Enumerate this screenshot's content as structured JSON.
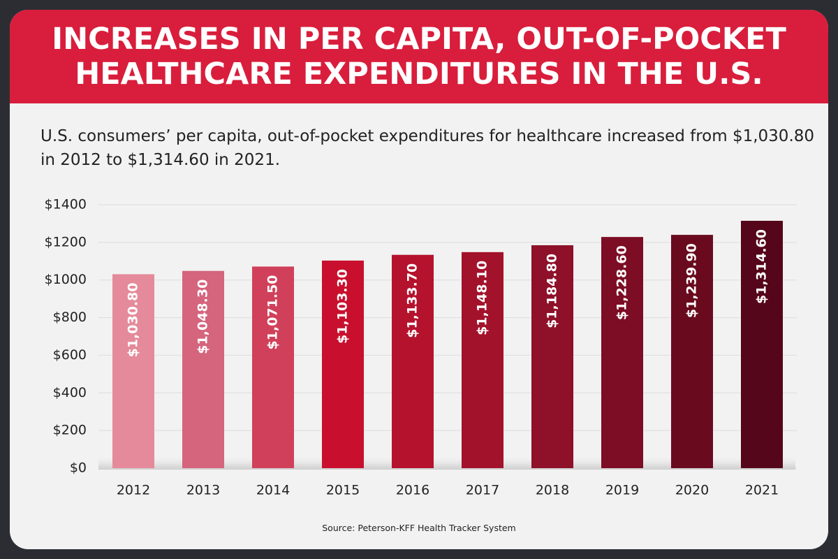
{
  "chart_data": {
    "type": "bar",
    "title": "INCREASES IN PER CAPITA, OUT-OF-POCKET HEALTHCARE EXPENDITURES IN THE U.S.",
    "subtitle": "U.S. consumers’ per capita, out-of-pocket expenditures for healthcare increased from $1,030.80 in 2012 to $1,314.60 in 2021.",
    "source": "Source: Peterson-KFF Health Tracker System",
    "categories": [
      "2012",
      "2013",
      "2014",
      "2015",
      "2016",
      "2017",
      "2018",
      "2019",
      "2020",
      "2021"
    ],
    "values": [
      1030.8,
      1048.3,
      1071.5,
      1103.3,
      1133.7,
      1148.1,
      1184.8,
      1228.6,
      1239.9,
      1314.6
    ],
    "value_labels": [
      "$1,030.80",
      "$1,048.30",
      "$1,071.50",
      "$1,103.30",
      "$1,133.70",
      "$1,148.10",
      "$1,184.80",
      "$1,228.60",
      "$1,239.90",
      "$1,314.60"
    ],
    "colors": [
      "#e48a9a",
      "#d5647d",
      "#d1405a",
      "#c8102e",
      "#b5122d",
      "#a3122b",
      "#8e1029",
      "#7c0d24",
      "#6a0a1f",
      "#55061a"
    ],
    "ylim": [
      0,
      1400
    ],
    "yticks": [
      {
        "value": 0,
        "label": "$0"
      },
      {
        "value": 200,
        "label": "$200"
      },
      {
        "value": 400,
        "label": "$400"
      },
      {
        "value": 600,
        "label": "$600"
      },
      {
        "value": 800,
        "label": "$800"
      },
      {
        "value": 1000,
        "label": "$1000"
      },
      {
        "value": 1200,
        "label": "$1200"
      },
      {
        "value": 1400,
        "label": "$1400"
      }
    ],
    "grid": true
  }
}
